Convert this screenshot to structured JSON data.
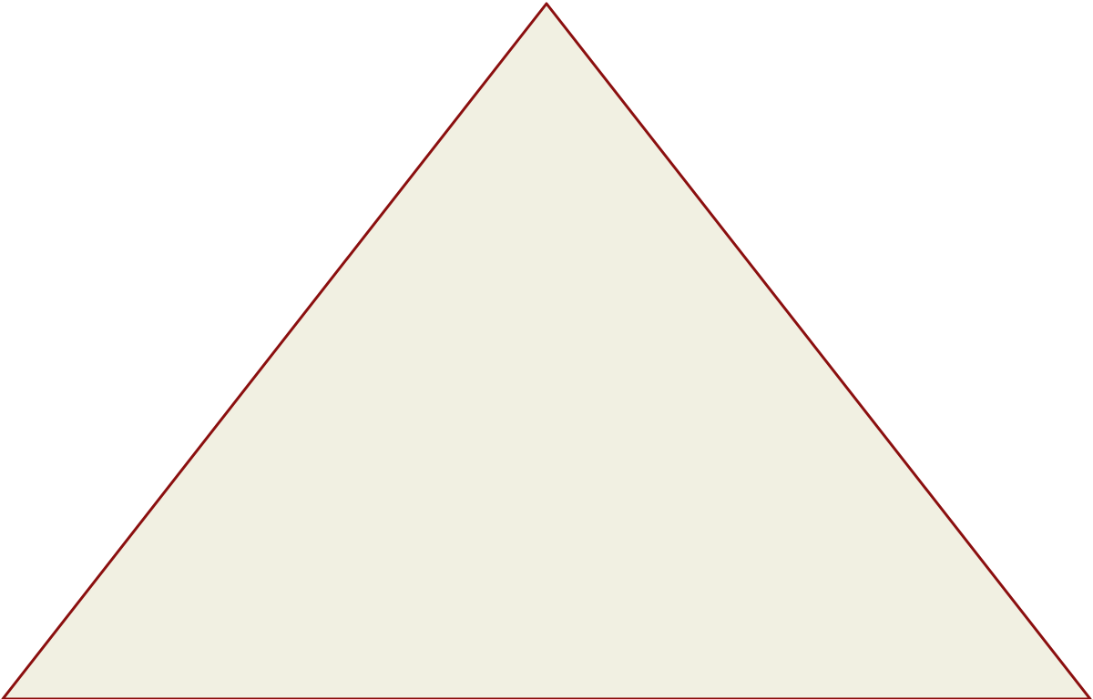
{
  "diagram": {
    "shape": "triangle",
    "fill_color": "#f1f0e2",
    "stroke_color": "#8b0f0f",
    "background_color": "#ffffff"
  }
}
